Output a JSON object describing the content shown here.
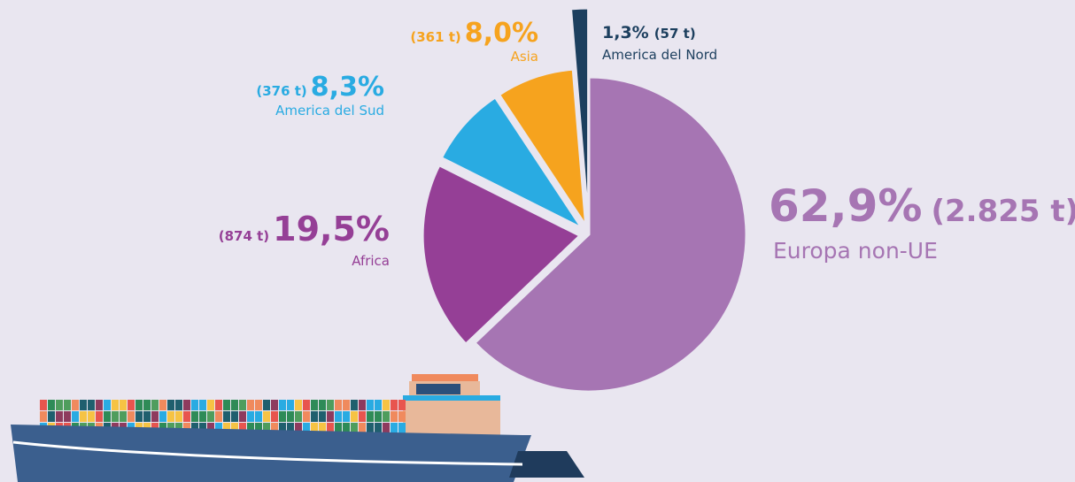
{
  "chart_data": {
    "type": "pie",
    "categories": [
      "Europa non-UE",
      "Africa",
      "America del Sud",
      "Asia",
      "America del Nord"
    ],
    "values": [
      62.9,
      19.5,
      8.3,
      8.0,
      1.3
    ],
    "value_labels": [
      "62,9%",
      "19,5%",
      "8,3%",
      "8,0%",
      "1,3%"
    ],
    "tonnes": [
      2825,
      874,
      376,
      361,
      57
    ],
    "tonnes_labels": [
      "(2.825 t)",
      "(874 t)",
      "(376 t)",
      "(361 t)",
      "(57 t)"
    ],
    "colors": [
      "#a675b3",
      "#953f96",
      "#29abe2",
      "#f6a31e",
      "#1c3f5e"
    ]
  }
}
